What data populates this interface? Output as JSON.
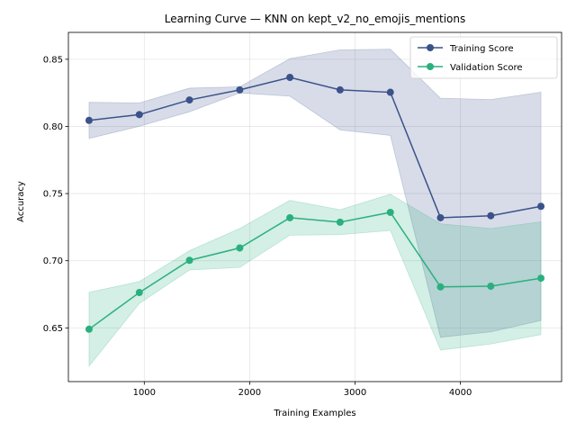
{
  "chart_data": {
    "type": "line",
    "title": "Learning Curve — KNN on kept_v2_no_emojis_mentions",
    "xlabel": "Training Examples",
    "ylabel": "Accuracy",
    "xlim": [
      280,
      4960
    ],
    "ylim": [
      0.61,
      0.87
    ],
    "x_ticks": [
      1000,
      2000,
      3000,
      4000
    ],
    "y_ticks": [
      0.65,
      0.7,
      0.75,
      0.8,
      0.85
    ],
    "y_tick_labels": [
      "0.65",
      "0.70",
      "0.75",
      "0.80",
      "0.85"
    ],
    "grid": true,
    "legend_position": "top-right",
    "x": [
      476,
      953,
      1429,
      1906,
      2382,
      2858,
      3335,
      3811,
      4288,
      4764
    ],
    "series": [
      {
        "name": "Training Score",
        "color": "#3b528b",
        "values": [
          0.8045,
          0.8088,
          0.8197,
          0.8272,
          0.8365,
          0.8272,
          0.8254,
          0.732,
          0.7335,
          0.7405
        ],
        "upper": [
          0.818,
          0.8175,
          0.8285,
          0.8295,
          0.8505,
          0.857,
          0.8575,
          0.821,
          0.82,
          0.8255
        ],
        "lower": [
          0.791,
          0.8001,
          0.8109,
          0.8249,
          0.8225,
          0.7974,
          0.7933,
          0.643,
          0.647,
          0.6555
        ]
      },
      {
        "name": "Validation Score",
        "color": "#2ab07f",
        "values": [
          0.649,
          0.6763,
          0.7003,
          0.7095,
          0.732,
          0.7287,
          0.736,
          0.6805,
          0.681,
          0.687
        ],
        "upper": [
          0.6765,
          0.6845,
          0.7075,
          0.724,
          0.745,
          0.738,
          0.7495,
          0.7275,
          0.724,
          0.729
        ],
        "lower": [
          0.6215,
          0.6681,
          0.6931,
          0.695,
          0.719,
          0.7194,
          0.7225,
          0.6335,
          0.638,
          0.645
        ]
      }
    ]
  }
}
